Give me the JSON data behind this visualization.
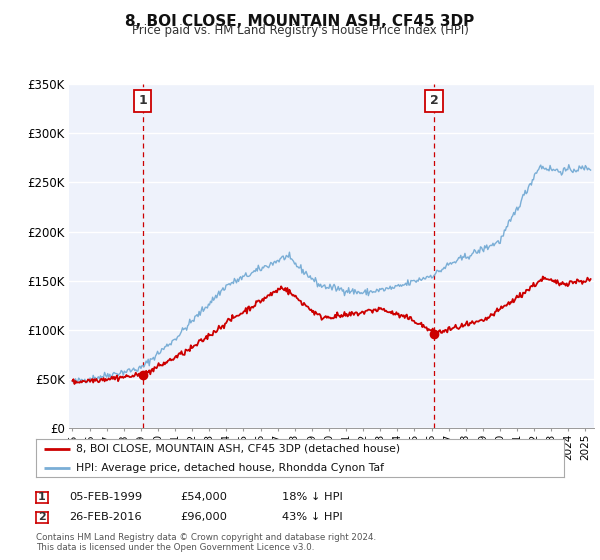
{
  "title": "8, BOI CLOSE, MOUNTAIN ASH, CF45 3DP",
  "subtitle": "Price paid vs. HM Land Registry's House Price Index (HPI)",
  "bg_color": "#eef2fb",
  "plot_bg_color": "#eef2fb",
  "red_line_color": "#cc0000",
  "blue_line_color": "#7aaed6",
  "dashed_line_color": "#cc0000",
  "marker1_x": 1999.1,
  "marker1_y": 54000,
  "marker2_x": 2016.15,
  "marker2_y": 96000,
  "sale1_date": "05-FEB-1999",
  "sale1_price": "£54,000",
  "sale1_info": "18% ↓ HPI",
  "sale2_date": "26-FEB-2016",
  "sale2_price": "£96,000",
  "sale2_info": "43% ↓ HPI",
  "legend_label1": "8, BOI CLOSE, MOUNTAIN ASH, CF45 3DP (detached house)",
  "legend_label2": "HPI: Average price, detached house, Rhondda Cynon Taf",
  "footer1": "Contains HM Land Registry data © Crown copyright and database right 2024.",
  "footer2": "This data is licensed under the Open Government Licence v3.0.",
  "ylim": [
    0,
    350000
  ],
  "xlim_start": 1994.8,
  "xlim_end": 2025.5,
  "yticks": [
    0,
    50000,
    100000,
    150000,
    200000,
    250000,
    300000,
    350000
  ],
  "ytick_labels": [
    "£0",
    "£50K",
    "£100K",
    "£150K",
    "£200K",
    "£250K",
    "£300K",
    "£350K"
  ],
  "xticks": [
    1995,
    1996,
    1997,
    1998,
    1999,
    2000,
    2001,
    2002,
    2003,
    2004,
    2005,
    2006,
    2007,
    2008,
    2009,
    2010,
    2011,
    2012,
    2013,
    2014,
    2015,
    2016,
    2017,
    2018,
    2019,
    2020,
    2021,
    2022,
    2023,
    2024,
    2025
  ]
}
